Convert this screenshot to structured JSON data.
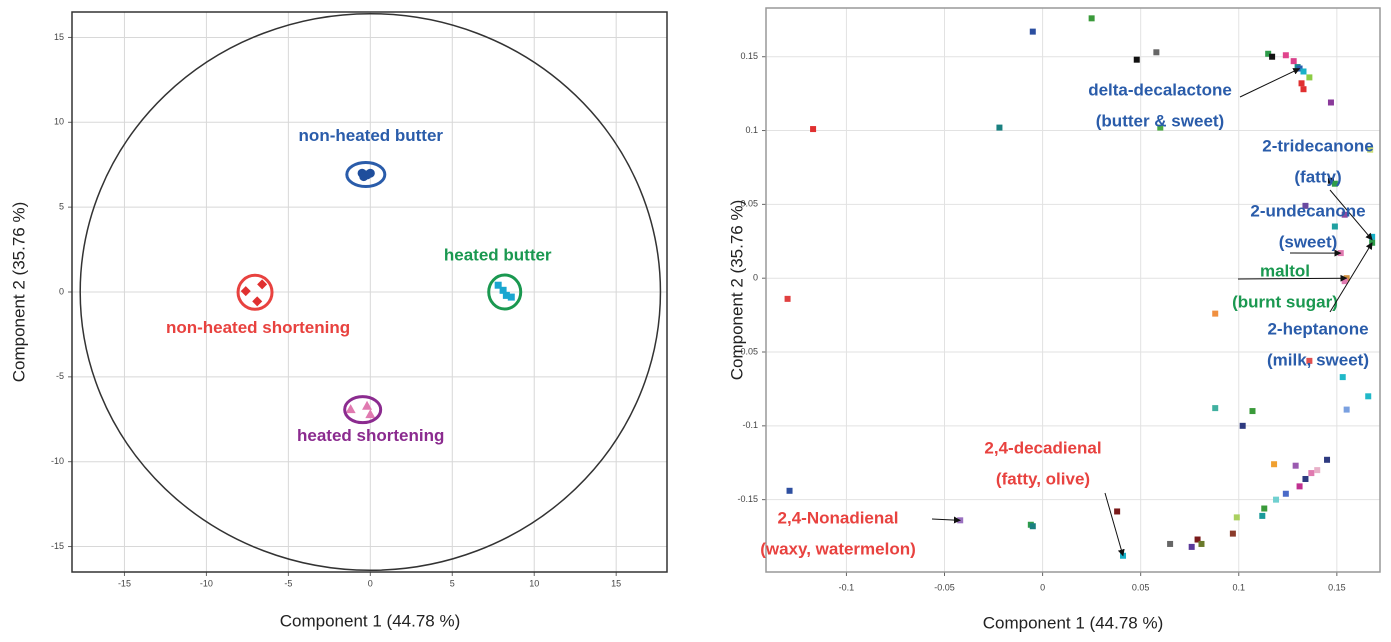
{
  "chart_data": [
    {
      "type": "scatter",
      "x_label": "Component 1 (44.78 %)",
      "y_label": "Component 2 (35.76 %)",
      "xlim": [
        -18.2,
        18.1
      ],
      "ylim": [
        -16.5,
        16.5
      ],
      "xticks": [
        -15,
        -10,
        -5,
        0,
        5,
        10,
        15
      ],
      "yticks": [
        -15,
        -10,
        -5,
        0,
        5,
        10,
        15
      ],
      "grid": true,
      "ellipse": {
        "cx": 0,
        "cy": 0,
        "rx": 17.7,
        "ry": 16.4
      },
      "series": [
        {
          "name": "non-heated butter",
          "color": "#2a5caa",
          "marker_color": "#1f4e9c",
          "marker": "circle",
          "x": [
            -0.5,
            -0.2,
            -0.4,
            0
          ],
          "y": [
            7.0,
            6.9,
            6.8,
            7.0
          ]
        },
        {
          "name": "heated butter",
          "color": "#1a9850",
          "marker_color": "#1aa6d0",
          "marker": "square",
          "x": [
            7.8,
            8.1,
            8.3,
            8.6
          ],
          "y": [
            0.4,
            0.1,
            -0.2,
            -0.3
          ]
        },
        {
          "name": "non-heated shortening",
          "color": "#e8423f",
          "marker_color": "#e03030",
          "marker": "diamond",
          "x": [
            -7.6,
            -6.6,
            -6.9
          ],
          "y": [
            0.05,
            0.45,
            -0.55
          ]
        },
        {
          "name": "heated shortening",
          "color": "#8b2b8f",
          "marker_color": "#e07ab0",
          "marker": "triangle",
          "x": [
            -1.2,
            -0.2,
            0
          ],
          "y": [
            -6.9,
            -6.7,
            -7.2
          ]
        }
      ]
    },
    {
      "type": "scatter",
      "x_label": "Component 1 (44.78 %)",
      "y_label": "Component 2 (35.76 %)",
      "xlim": [
        -0.141,
        0.172
      ],
      "ylim": [
        -0.199,
        0.183
      ],
      "xticks": [
        -0.1,
        -0.05,
        0,
        0.05,
        0.1,
        0.15
      ],
      "yticks": [
        -0.15,
        -0.1,
        -0.05,
        0,
        0.05,
        0.1,
        0.15
      ],
      "grid": true,
      "x": [
        0.025,
        -0.005,
        0.058,
        0.048,
        0.115,
        0.117,
        0.124,
        0.128,
        0.13,
        0.131,
        0.133,
        0.136,
        0.132,
        0.133,
        0.147,
        -0.117,
        -0.022,
        0.06,
        0.167,
        0.147,
        0.149,
        0.154,
        0.134,
        0.149,
        0.168,
        0.168,
        0.152,
        0.155,
        0.154,
        -0.13,
        0.088,
        0.136,
        0.153,
        0.155,
        0.166,
        0.088,
        0.107,
        0.102,
        0.118,
        0.129,
        0.137,
        0.14,
        0.145,
        0.134,
        0.124,
        0.119,
        0.131,
        0.113,
        0.112,
        0.099,
        -0.129,
        -0.042,
        -0.006,
        -0.005,
        0.038,
        0.079,
        0.065,
        0.076,
        0.081,
        0.097,
        0.041
      ],
      "y": [
        0.176,
        0.167,
        0.153,
        0.148,
        0.152,
        0.15,
        0.151,
        0.147,
        0.143,
        0.142,
        0.14,
        0.136,
        0.132,
        0.128,
        0.119,
        0.101,
        0.102,
        0.102,
        0.087,
        0.066,
        0.064,
        0.043,
        0.049,
        0.035,
        0.028,
        0.024,
        0.017,
        0.0,
        -0.002,
        -0.014,
        -0.024,
        -0.056,
        -0.067,
        -0.089,
        -0.08,
        -0.088,
        -0.09,
        -0.1,
        -0.126,
        -0.127,
        -0.132,
        -0.13,
        -0.123,
        -0.136,
        -0.146,
        -0.15,
        -0.141,
        -0.156,
        -0.161,
        -0.162,
        -0.144,
        -0.164,
        -0.167,
        -0.168,
        -0.158,
        -0.177,
        -0.18,
        -0.182,
        -0.18,
        -0.173,
        -0.188
      ],
      "colors": [
        "#3a9a3a",
        "#2b4ea0",
        "#666666",
        "#111111",
        "#2e9c4a",
        "#111111",
        "#e0448c",
        "#d9408a",
        "#1a8c8c",
        "#2b5fb0",
        "#18b0c8",
        "#8ccc44",
        "#e03030",
        "#e03030",
        "#8a3a9a",
        "#e03030",
        "#1a8080",
        "#4caa44",
        "#ccdd77",
        "#111111",
        "#2e9c4a",
        "#8a4aa0",
        "#6a4aa0",
        "#20a0a0",
        "#18b0c8",
        "#2e9c4a",
        "#e07ab0",
        "#d09040",
        "#e07ab0",
        "#e04040",
        "#f09040",
        "#e05050",
        "#20b8c8",
        "#7aa0e0",
        "#20b8c8",
        "#40b0a0",
        "#3a9a3a",
        "#2e3a80",
        "#f0a030",
        "#9a5ab0",
        "#e07ab0",
        "#e8b0c8",
        "#2e3a80",
        "#2e3a80",
        "#4a6ac8",
        "#70d0d0",
        "#c03090",
        "#3a9a3a",
        "#1a9a9a",
        "#aad060",
        "#2e4fa0",
        "#9a70c0",
        "#2e9c4a",
        "#1a8080",
        "#7a1a1a",
        "#7a1a1a",
        "#666666",
        "#5a3a9a",
        "#6a7a2a",
        "#8a3a2a",
        "#18b0c8"
      ],
      "annotations": [
        {
          "lines": [
            "delta-decalactone",
            "(butter & sweet)"
          ],
          "color": "#2a5caa",
          "xy": [
            0.131,
            0.142
          ]
        },
        {
          "lines": [
            "2-tridecanone",
            "(fatty)"
          ],
          "color": "#2a5caa",
          "xy": [
            0.168,
            0.026
          ]
        },
        {
          "lines": [
            "2-undecanone",
            "(sweet)"
          ],
          "color": "#2a5caa",
          "xy": [
            0.152,
            0.017
          ]
        },
        {
          "lines": [
            "maltol",
            "(burnt sugar)"
          ],
          "color": "#1a9850",
          "xy": [
            0.155,
            0.0
          ]
        },
        {
          "lines": [
            "2-heptanone",
            "(milk, sweet)"
          ],
          "color": "#2a5caa",
          "xy": [
            0.168,
            0.024
          ]
        },
        {
          "lines": [
            "2,4-decadienal",
            "(fatty, olive)"
          ],
          "color": "#e8423f",
          "xy": [
            0.041,
            -0.188
          ]
        },
        {
          "lines": [
            "2,4-Nonadienal",
            "(waxy, watermelon)"
          ],
          "color": "#e8423f",
          "xy": [
            -0.042,
            -0.164
          ]
        }
      ]
    }
  ]
}
